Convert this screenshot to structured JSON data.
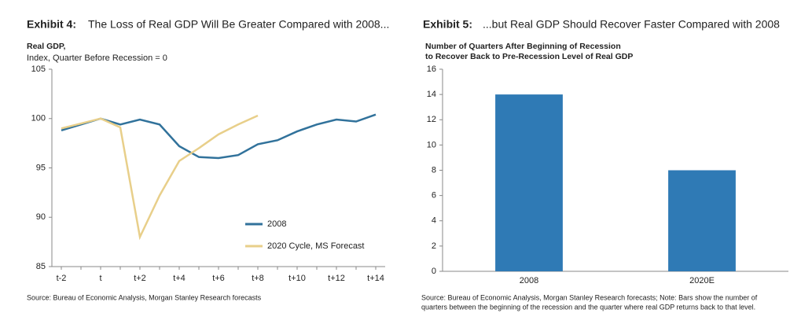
{
  "chart_data": [
    {
      "type": "line",
      "exhibit": "Exhibit 4:",
      "heading": "The Loss of Real GDP Will Be Greater Compared with 2008...",
      "title": "Real GDP,",
      "subtitle": "Index, Quarter Before Recession = 0",
      "categories": [
        "t-2",
        null,
        "t",
        null,
        "t+2",
        null,
        "t+4",
        null,
        "t+6",
        null,
        "t+8",
        null,
        "t+10",
        null,
        "t+12",
        null,
        "t+14"
      ],
      "series": [
        {
          "name": "2008",
          "color": "#31729b",
          "values": [
            98.8,
            99.4,
            100,
            99.4,
            99.9,
            99.4,
            97.2,
            96.1,
            96.0,
            96.3,
            97.4,
            97.8,
            98.7,
            99.4,
            99.9,
            99.7,
            100.4
          ]
        },
        {
          "name": "2020 Cycle, MS Forecast",
          "color": "#e8cf8a",
          "values": [
            99.0,
            99.5,
            100,
            99.1,
            88.0,
            92.2,
            95.7,
            97.0,
            98.4,
            99.4,
            100.3,
            null,
            null,
            null,
            null,
            null,
            null
          ]
        }
      ],
      "ylim": [
        85,
        105
      ],
      "yticks": [
        85,
        90,
        95,
        100,
        105
      ],
      "legend": "lower right",
      "source": "Source: Bureau of Economic Analysis, Morgan Stanley Research forecasts"
    },
    {
      "type": "bar",
      "exhibit": "Exhibit 5:",
      "heading": "...but Real GDP Should Recover Faster Compared with 2008",
      "title": "Number of Quarters After Beginning of Recession",
      "subtitle": "to Recover Back to Pre-Recession Level of Real GDP",
      "categories": [
        "2008",
        "2020E"
      ],
      "values": [
        14,
        8
      ],
      "color": "#2f7ab5",
      "ylim": [
        0,
        16
      ],
      "yticks": [
        0,
        2,
        4,
        6,
        8,
        10,
        12,
        14,
        16
      ],
      "source": "Source: Bureau of Economic Analysis, Morgan Stanley Research forecasts; Note: Bars show the number of",
      "source2": "quarters between the beginning of the recession and the quarter where real GDP returns back to that level."
    }
  ]
}
